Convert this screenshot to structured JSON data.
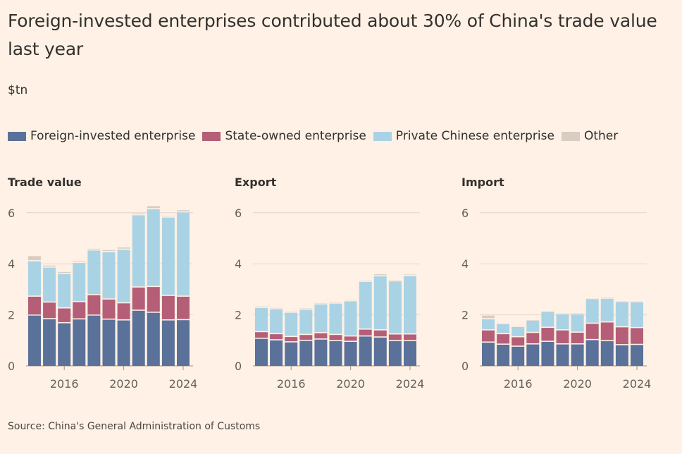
{
  "title": "Foreign-invested enterprises contributed about 30% of China's trade value last year",
  "unit": "$tn",
  "source": "Source: China's General Administration of Customs",
  "legend": [
    {
      "label": "Foreign-invested enterprise",
      "color": "#5A7199"
    },
    {
      "label": "State-owned enterprise",
      "color": "#B55E77"
    },
    {
      "label": "Private Chinese enterprise",
      "color": "#A9D3E5"
    },
    {
      "label": "Other",
      "color": "#D9CCC1"
    }
  ],
  "chart_data": [
    {
      "type": "bar",
      "stacked": true,
      "title": "Trade value",
      "x": [
        2014,
        2015,
        2016,
        2017,
        2018,
        2019,
        2020,
        2021,
        2022,
        2023,
        2024
      ],
      "x_tick_labels": [
        "2016",
        "2020",
        "2024"
      ],
      "x_ticks": [
        2016,
        2020,
        2024
      ],
      "y_ticks": [
        0,
        2,
        4,
        6
      ],
      "ylim": [
        0,
        6.6
      ],
      "series": [
        {
          "name": "Foreign-invested enterprise",
          "color": "#5A7199",
          "values": [
            1.97,
            1.83,
            1.67,
            1.82,
            1.97,
            1.81,
            1.78,
            2.16,
            2.08,
            1.78,
            1.79
          ]
        },
        {
          "name": "State-owned enterprise",
          "color": "#B55E77",
          "values": [
            0.74,
            0.65,
            0.58,
            0.68,
            0.8,
            0.79,
            0.67,
            0.91,
            1.01,
            0.96,
            0.92
          ]
        },
        {
          "name": "Private Chinese enterprise",
          "color": "#A9D3E5",
          "values": [
            1.39,
            1.37,
            1.35,
            1.53,
            1.75,
            1.86,
            2.1,
            2.83,
            3.05,
            3.07,
            3.3
          ]
        },
        {
          "name": "Other",
          "color": "#D9CCC1",
          "values": [
            0.2,
            0.08,
            0.08,
            0.07,
            0.07,
            0.08,
            0.09,
            0.07,
            0.12,
            0.06,
            0.09
          ]
        }
      ]
    },
    {
      "type": "bar",
      "stacked": true,
      "title": "Export",
      "x": [
        2014,
        2015,
        2016,
        2017,
        2018,
        2019,
        2020,
        2021,
        2022,
        2023,
        2024
      ],
      "x_tick_labels": [
        "2016",
        "2020",
        "2024"
      ],
      "x_ticks": [
        2016,
        2020,
        2024
      ],
      "y_ticks": [
        0,
        2,
        4,
        6
      ],
      "ylim": [
        0,
        6.6
      ],
      "series": [
        {
          "name": "Foreign-invested enterprise",
          "color": "#5A7199",
          "values": [
            1.06,
            1.0,
            0.92,
            0.98,
            1.03,
            0.97,
            0.94,
            1.15,
            1.11,
            0.97,
            0.97
          ]
        },
        {
          "name": "State-owned enterprise",
          "color": "#B55E77",
          "values": [
            0.26,
            0.24,
            0.21,
            0.23,
            0.25,
            0.24,
            0.21,
            0.27,
            0.28,
            0.26,
            0.26
          ]
        },
        {
          "name": "Private Chinese enterprise",
          "color": "#A9D3E5",
          "values": [
            0.95,
            0.98,
            0.95,
            0.99,
            1.13,
            1.23,
            1.38,
            1.87,
            2.12,
            2.08,
            2.29
          ]
        },
        {
          "name": "Other",
          "color": "#D9CCC1",
          "values": [
            0.06,
            0.05,
            0.04,
            0.05,
            0.05,
            0.05,
            0.05,
            0.05,
            0.08,
            0.04,
            0.06
          ]
        }
      ]
    },
    {
      "type": "bar",
      "stacked": true,
      "title": "Import",
      "x": [
        2014,
        2015,
        2016,
        2017,
        2018,
        2019,
        2020,
        2021,
        2022,
        2023,
        2024
      ],
      "x_tick_labels": [
        "2016",
        "2020",
        "2024"
      ],
      "x_ticks": [
        2016,
        2020,
        2024
      ],
      "y_ticks": [
        0,
        2,
        4,
        6
      ],
      "ylim": [
        0,
        6.6
      ],
      "series": [
        {
          "name": "Foreign-invested enterprise",
          "color": "#5A7199",
          "values": [
            0.91,
            0.83,
            0.75,
            0.84,
            0.94,
            0.84,
            0.84,
            1.01,
            0.97,
            0.81,
            0.82
          ]
        },
        {
          "name": "State-owned enterprise",
          "color": "#B55E77",
          "values": [
            0.48,
            0.41,
            0.37,
            0.45,
            0.55,
            0.55,
            0.46,
            0.64,
            0.73,
            0.7,
            0.66
          ]
        },
        {
          "name": "Private Chinese enterprise",
          "color": "#A9D3E5",
          "values": [
            0.44,
            0.39,
            0.4,
            0.48,
            0.62,
            0.63,
            0.72,
            0.96,
            0.93,
            0.99,
            1.01
          ]
        },
        {
          "name": "Other",
          "color": "#D9CCC1",
          "values": [
            0.14,
            0.03,
            0.04,
            0.02,
            0.02,
            0.03,
            0.04,
            0.02,
            0.04,
            0.02,
            0.03
          ]
        }
      ]
    }
  ]
}
